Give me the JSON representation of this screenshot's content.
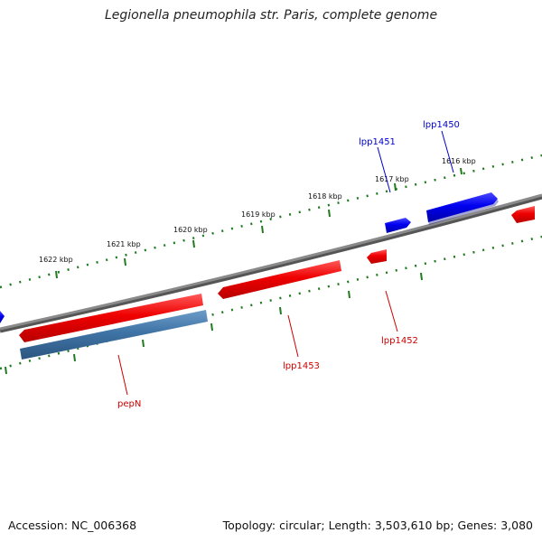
{
  "title": "Legionella pneumophila str. Paris, complete genome",
  "footer": {
    "accession": "Accession: NC_006368",
    "summary": "Topology: circular; Length: 3,503,610 bp; Genes: 3,080"
  },
  "ticks": [
    "1616 kbp",
    "1617 kbp",
    "1618 kbp",
    "1619 kbp",
    "1620 kbp",
    "1621 kbp",
    "1622 kbp"
  ],
  "genes": [
    {
      "name": "lpp1450",
      "strand": "forward",
      "color": "#0000ee"
    },
    {
      "name": "lpp1451",
      "strand": "forward",
      "color": "#0000ee"
    },
    {
      "name": "lpp1452",
      "strand": "reverse",
      "color": "#dd0000"
    },
    {
      "name": "lpp1453",
      "strand": "reverse",
      "color": "#dd0000"
    },
    {
      "name": "pepN",
      "strand": "reverse",
      "color": "#dd0000"
    }
  ],
  "colors": {
    "backbone": "#7a7a7a",
    "forward_gene": "#0000ee",
    "reverse_gene": "#ee0000",
    "rna_gene": "#3f74a6",
    "tick": "#1f7a1f",
    "label_blue": "#0000cc",
    "label_red": "#cc0000"
  }
}
